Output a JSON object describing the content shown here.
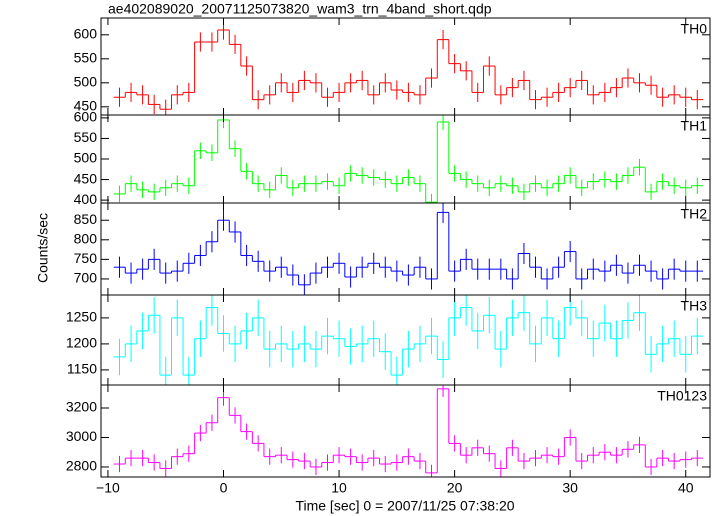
{
  "chart_data": {
    "type": "step",
    "title": "ae402089020_20071125073820_wam3_trn_4band_short.qdp",
    "xlabel": "Time [sec] 0 = 2007/11/25 07:38:20",
    "ylabel": "Counts/sec",
    "x": [
      -9,
      -8,
      -7,
      -6,
      -5,
      -4,
      -3,
      -2,
      -1,
      0,
      1,
      2,
      3,
      4,
      5,
      6,
      7,
      8,
      9,
      10,
      11,
      12,
      13,
      14,
      15,
      16,
      17,
      18,
      19,
      20,
      21,
      22,
      23,
      24,
      25,
      26,
      27,
      28,
      29,
      30,
      31,
      32,
      33,
      34,
      35,
      36,
      37,
      38,
      39,
      40,
      41
    ],
    "xlim": [
      -10.6,
      42.1
    ],
    "xticks": [
      {
        "value": -10,
        "label": "−10"
      },
      0,
      10,
      20,
      30,
      40
    ],
    "panels": [
      {
        "name": "TH0",
        "color": "#ff0000",
        "error": 20,
        "ylim": [
          433,
          635
        ],
        "yticks": [
          450,
          500,
          550,
          600
        ],
        "values": [
          470,
          480,
          475,
          455,
          445,
          475,
          480,
          585,
          585,
          610,
          580,
          535,
          465,
          475,
          500,
          480,
          505,
          500,
          470,
          480,
          500,
          505,
          475,
          500,
          485,
          480,
          475,
          510,
          590,
          540,
          525,
          480,
          535,
          475,
          490,
          505,
          465,
          470,
          480,
          490,
          505,
          475,
          480,
          490,
          510,
          500,
          495,
          470,
          475,
          470,
          465
        ]
      },
      {
        "name": "TH1",
        "color": "#00ff00",
        "error": 20,
        "ylim": [
          393,
          607
        ],
        "yticks": [
          400,
          450,
          500,
          550,
          600
        ],
        "values": [
          415,
          440,
          425,
          420,
          430,
          440,
          435,
          520,
          515,
          595,
          525,
          470,
          440,
          425,
          460,
          430,
          440,
          440,
          445,
          435,
          465,
          460,
          455,
          450,
          440,
          455,
          440,
          395,
          590,
          465,
          450,
          440,
          430,
          440,
          435,
          420,
          440,
          430,
          440,
          460,
          430,
          445,
          450,
          445,
          460,
          480,
          420,
          445,
          435,
          430,
          435
        ]
      },
      {
        "name": "TH2",
        "color": "#0000ff",
        "error": 27,
        "ylim": [
          659,
          894
        ],
        "yticks": [
          700,
          750,
          800,
          850
        ],
        "values": [
          730,
          715,
          725,
          750,
          715,
          720,
          740,
          760,
          795,
          850,
          820,
          760,
          745,
          720,
          730,
          710,
          685,
          715,
          730,
          740,
          705,
          730,
          740,
          730,
          720,
          710,
          730,
          700,
          870,
          720,
          750,
          725,
          725,
          725,
          700,
          765,
          730,
          700,
          730,
          770,
          700,
          725,
          720,
          735,
          715,
          735,
          720,
          700,
          725,
          720,
          720
        ]
      },
      {
        "name": "TH3",
        "color": "#00ffff",
        "error": 35,
        "ylim": [
          1121,
          1294
        ],
        "yticks": [
          1150,
          1200,
          1250
        ],
        "values": [
          1175,
          1200,
          1225,
          1255,
          1140,
          1250,
          1140,
          1210,
          1270,
          1220,
          1200,
          1225,
          1250,
          1190,
          1200,
          1190,
          1200,
          1190,
          1215,
          1210,
          1195,
          1200,
          1210,
          1185,
          1140,
          1190,
          1200,
          1215,
          1170,
          1250,
          1270,
          1225,
          1255,
          1190,
          1250,
          1260,
          1200,
          1250,
          1210,
          1270,
          1250,
          1210,
          1240,
          1210,
          1245,
          1260,
          1180,
          1200,
          1210,
          1180,
          1215
        ]
      },
      {
        "name": "TH0123",
        "color": "#ff00ff",
        "error": 55,
        "ylim": [
          2732,
          3356
        ],
        "yticks": [
          2800,
          3000,
          3200
        ],
        "values": [
          2820,
          2860,
          2860,
          2830,
          2790,
          2870,
          2890,
          3030,
          3100,
          3270,
          3150,
          3040,
          2960,
          2870,
          2880,
          2850,
          2840,
          2800,
          2830,
          2880,
          2870,
          2830,
          2860,
          2820,
          2830,
          2870,
          2840,
          2760,
          3330,
          2960,
          2880,
          2930,
          2890,
          2790,
          2930,
          2840,
          2860,
          2880,
          2870,
          3000,
          2840,
          2880,
          2900,
          2880,
          2920,
          2950,
          2800,
          2860,
          2840,
          2850,
          2860
        ]
      }
    ]
  }
}
